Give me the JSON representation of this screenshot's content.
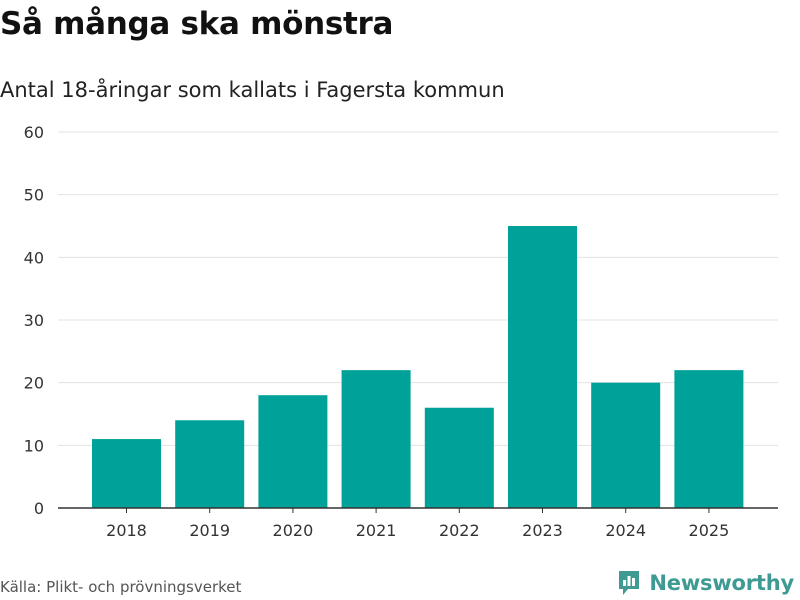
{
  "header": {
    "title": "Så många ska mönstra",
    "subtitle": "Antal 18-åringar som kallats i Fagersta kommun"
  },
  "chart_data": {
    "type": "bar",
    "title": "Så många ska mönstra",
    "subtitle": "Antal 18-åringar som kallats i Fagersta kommun",
    "categories": [
      "2018",
      "2019",
      "2020",
      "2021",
      "2022",
      "2023",
      "2024",
      "2025"
    ],
    "values": [
      11,
      14,
      18,
      22,
      16,
      45,
      20,
      22
    ],
    "ylim": [
      0,
      60
    ],
    "yticks": [
      0,
      10,
      20,
      30,
      40,
      50,
      60
    ],
    "xlabel": "",
    "ylabel": "",
    "grid": true,
    "bar_color": "#00a199"
  },
  "footer": {
    "source": "Källa: Plikt- och prövningsverket",
    "brand": "Newsworthy",
    "brand_color": "#3e9a92",
    "logo_icon": "bar-chart-speech-bubble-icon"
  }
}
